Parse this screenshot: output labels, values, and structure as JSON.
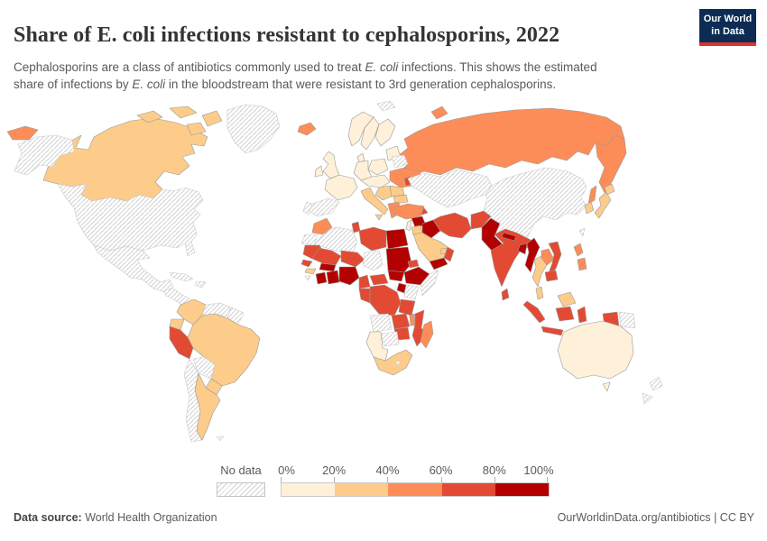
{
  "header": {
    "title": "Share of E. coli infections resistant to cephalosporins, 2022",
    "subtitle_line1": "Cephalosporins are a class of antibiotics commonly used to treat <i>E. coli</i> infections. This shows the estimated",
    "subtitle_line2": "share of infections by <i>E. coli</i> in the bloodstream that were resistant to 3rd generation cephalosporins.",
    "logo": {
      "line1": "Our World",
      "line2": "in Data",
      "bg_color": "#0d2c54",
      "accent_color": "#d8352c"
    }
  },
  "chart_data": {
    "type": "choropleth",
    "title": "Share of E. coli infections resistant to cephalosporins",
    "year": "2022",
    "unit": "%",
    "legend": {
      "no_data_label": "No data",
      "tick_labels": [
        "0%",
        "20%",
        "40%",
        "60%",
        "80%",
        "100%"
      ],
      "position": "bottom"
    },
    "bin_colors": {
      "0-20": "#fef0d9",
      "20-40": "#fdcc8a",
      "40-60": "#fc8d59",
      "60-80": "#e34a33",
      "80-100": "#b30000"
    },
    "bin_order": [
      "0-20",
      "20-40",
      "40-60",
      "60-80",
      "80-100"
    ],
    "no_data_style": "gray-diagonal-hatch",
    "regions": {
      "russia-east-tip": "40-60",
      "alaska": "no-data",
      "canada": "20-40",
      "canada-arctic": "20-40",
      "greenland": "no-data",
      "usa": "no-data",
      "mexico": "no-data",
      "central-america": "no-data",
      "cuba": "no-data",
      "hispaniola": "no-data",
      "colombia": "20-40",
      "venezuela": "no-data",
      "guyanas": "no-data",
      "ecuador": "20-40",
      "peru": "60-80",
      "brazil": "20-40",
      "bolivia": "no-data",
      "paraguay": "20-40",
      "chile": "no-data",
      "argentina": "20-40",
      "falkland-islands": "no-data",
      "iceland": "40-60",
      "svalbard": "no-data",
      "norway": "0-20",
      "sweden": "0-20",
      "finland": "0-20",
      "denmark": "0-20",
      "uk": "0-20",
      "ireland": "0-20",
      "baltics": "0-20",
      "belarus": "no-data",
      "poland": "0-20",
      "germany": "0-20",
      "france": "0-20",
      "spain": "no-data",
      "portugal": "no-data",
      "central-europe": "0-20",
      "italy": "20-40",
      "balkans": "20-40",
      "romania": "20-40",
      "bulgaria": "20-40",
      "greece": "40-60",
      "ukraine": "40-60",
      "moldova": "60-80",
      "russia": "40-60",
      "kazakhstan-central-asia": "no-data",
      "caucasus": "60-80",
      "turkey": "40-60",
      "syria": "80-100",
      "israel": "0-20",
      "jordan": "20-40",
      "iraq": "80-100",
      "iran": "60-80",
      "saudi-arabia": "20-40",
      "uae": "20-40",
      "yemen": "80-100",
      "oman": "60-80",
      "morocco": "40-60",
      "western-sahara": "no-data",
      "algeria": "no-data",
      "tunisia": "60-80",
      "libya": "60-80",
      "egypt": "80-100",
      "mauritania": "60-80",
      "mali": "60-80",
      "niger": "60-80",
      "chad": "no-data",
      "senegal": "60-80",
      "guinea": "20-40",
      "sierra-leone": "no-data",
      "ivory-coast": "80-100",
      "ghana-togo-benin": "80-100",
      "burkina-faso": "80-100",
      "nigeria": "80-100",
      "cameroon": "60-80",
      "central-african-republic": "60-80",
      "sudan": "80-100",
      "south-sudan": "80-100",
      "eritrea": "60-80",
      "ethiopia": "80-100",
      "somalia": "no-data",
      "kenya": "no-data",
      "uganda": "80-100",
      "drc": "60-80",
      "congo-gabon": "60-80",
      "tanzania": "60-80",
      "angola": "no-data",
      "zambia": "60-80",
      "malawi": "40-60",
      "mozambique": "60-80",
      "zimbabwe": "60-80",
      "botswana": "no-data",
      "namibia": "0-20",
      "south-africa": "20-40",
      "lesotho": "no-data",
      "madagascar": "40-60",
      "afghanistan": "60-80",
      "pakistan": "80-100",
      "india": "60-80",
      "nepal": "80-100",
      "bangladesh": "80-100",
      "sri-lanka": "60-80",
      "china-mongolia": "no-data",
      "south-korea": "20-40",
      "japan": "20-40",
      "taiwan": "no-data",
      "myanmar": "80-100",
      "thailand": "20-40",
      "laos": "40-60",
      "vietnam": "60-80",
      "cambodia": "60-80",
      "malaysia": "20-40",
      "philippines": "40-60",
      "indonesia": "60-80",
      "papua-new-guinea": "no-data",
      "australia": "0-20",
      "new-zealand": "no-data"
    }
  },
  "footer": {
    "source_label": "Data source:",
    "source_value": "World Health Organization",
    "link": "OurWorldinData.org/antibiotics",
    "divider": "|",
    "license": "CC BY"
  }
}
